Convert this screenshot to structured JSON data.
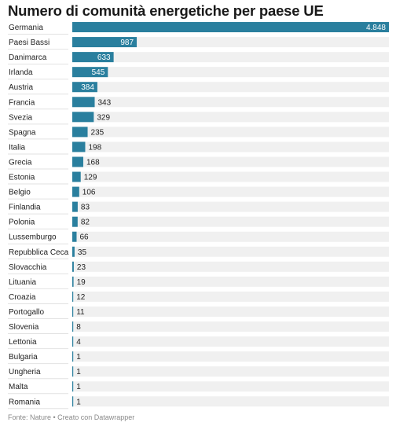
{
  "title": "Numero di comunità energetiche per paese UE",
  "footer": "Fonte: Nature • Creato con Datawrapper",
  "colors": {
    "bar": "#2a7f9e",
    "track": "#f0f0f0",
    "separator": "#e2e2e2"
  },
  "chart_data": {
    "type": "bar",
    "orientation": "horizontal",
    "title": "Numero di comunità energetiche per paese UE",
    "categories": [
      "Germania",
      "Paesi Bassi",
      "Danimarca",
      "Irlanda",
      "Austria",
      "Francia",
      "Svezia",
      "Spagna",
      "Italia",
      "Grecia",
      "Estonia",
      "Belgio",
      "Finlandia",
      "Polonia",
      "Lussemburgo",
      "Repubblica Ceca",
      "Slovacchia",
      "Lituania",
      "Croazia",
      "Portogallo",
      "Slovenia",
      "Lettonia",
      "Bulgaria",
      "Ungheria",
      "Malta",
      "Romania"
    ],
    "values": [
      4848,
      987,
      633,
      545,
      384,
      343,
      329,
      235,
      198,
      168,
      129,
      106,
      83,
      82,
      66,
      35,
      23,
      19,
      12,
      11,
      8,
      4,
      1,
      1,
      1,
      1
    ],
    "value_labels": [
      "4.848",
      "987",
      "633",
      "545",
      "384",
      "343",
      "329",
      "235",
      "198",
      "168",
      "129",
      "106",
      "83",
      "82",
      "66",
      "35",
      "23",
      "19",
      "12",
      "11",
      "8",
      "4",
      "1",
      "1",
      "1",
      "1"
    ],
    "xlim": [
      0,
      4848
    ],
    "grid": false,
    "legend": "none"
  }
}
